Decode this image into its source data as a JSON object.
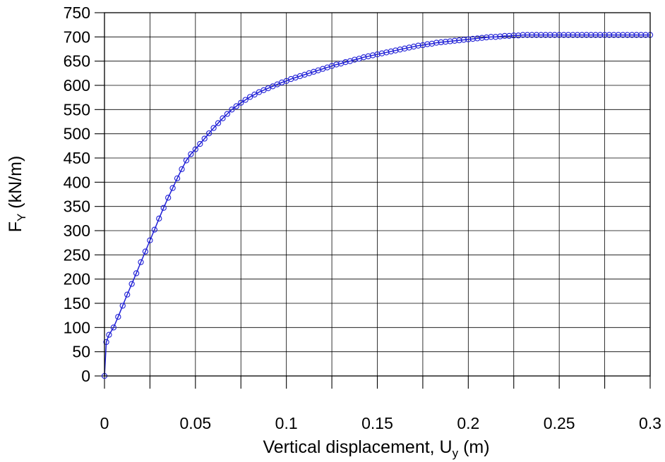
{
  "chart_data": {
    "type": "scatter",
    "title": "",
    "xlabel_main": "Vertical displacement, U",
    "xlabel_sub": "y",
    "xlabel_unit": " (m)",
    "ylabel_main": "F",
    "ylabel_sub": "Y",
    "ylabel_unit": " (kN/m)",
    "xlim": [
      0,
      0.3
    ],
    "ylim": [
      0,
      750
    ],
    "x_ticks": [
      0,
      0.05,
      0.1,
      0.15,
      0.2,
      0.25,
      0.3
    ],
    "x_tick_labels": [
      "0",
      "0.05",
      "0.1",
      "0.15",
      "0.2",
      "0.25",
      "0.3"
    ],
    "y_ticks": [
      0,
      50,
      100,
      150,
      200,
      250,
      300,
      350,
      400,
      450,
      500,
      550,
      600,
      650,
      700,
      750
    ],
    "y_tick_labels": [
      "0",
      "50",
      "100",
      "150",
      "200",
      "250",
      "300",
      "350",
      "400",
      "450",
      "500",
      "550",
      "600",
      "650",
      "700",
      "750"
    ],
    "grid": true,
    "marker": "open-circle",
    "line": true,
    "color": "#1f1fd6",
    "series": [
      {
        "x": [
          0,
          0.001,
          0.0025,
          0.005,
          0.0075,
          0.01,
          0.0125,
          0.015,
          0.0175,
          0.02,
          0.0225,
          0.025,
          0.0275,
          0.03,
          0.0325,
          0.035,
          0.0375,
          0.04,
          0.0425,
          0.045,
          0.0475,
          0.05,
          0.0525,
          0.055,
          0.0575,
          0.06,
          0.0625,
          0.065,
          0.0675,
          0.07,
          0.0725,
          0.075,
          0.0775,
          0.08,
          0.0825,
          0.085,
          0.0875,
          0.09,
          0.0925,
          0.095,
          0.0975,
          0.1,
          0.1025,
          0.105,
          0.1075,
          0.11,
          0.1125,
          0.115,
          0.1175,
          0.12,
          0.1225,
          0.125,
          0.1275,
          0.13,
          0.1325,
          0.135,
          0.1375,
          0.14,
          0.1425,
          0.145,
          0.1475,
          0.15,
          0.1525,
          0.155,
          0.1575,
          0.16,
          0.1625,
          0.165,
          0.1675,
          0.17,
          0.1725,
          0.175,
          0.1775,
          0.18,
          0.1825,
          0.185,
          0.1875,
          0.19,
          0.1925,
          0.195,
          0.1975,
          0.2,
          0.2025,
          0.205,
          0.2075,
          0.21,
          0.2125,
          0.215,
          0.2175,
          0.22,
          0.2225,
          0.225,
          0.2275,
          0.23,
          0.2325,
          0.235,
          0.2375,
          0.24,
          0.2425,
          0.245,
          0.2475,
          0.25,
          0.2525,
          0.255,
          0.2575,
          0.26,
          0.2625,
          0.265,
          0.2675,
          0.27,
          0.2725,
          0.275,
          0.2775,
          0.28,
          0.2825,
          0.285,
          0.2875,
          0.29,
          0.2925,
          0.295,
          0.2975,
          0.3
        ],
        "y": [
          0,
          70,
          85,
          100,
          122,
          145,
          168,
          190,
          212,
          235,
          257,
          280,
          302,
          325,
          347,
          368,
          388,
          408,
          427,
          445,
          458,
          468,
          479,
          490,
          501,
          512,
          522,
          532,
          541,
          550,
          557,
          564,
          570,
          576,
          581,
          586,
          590,
          594,
          598,
          602,
          606,
          609,
          613,
          616,
          619,
          622,
          625,
          628,
          631,
          634,
          637,
          640,
          643,
          645,
          648,
          650,
          653,
          655,
          658,
          660,
          662,
          664,
          666,
          668,
          670,
          672,
          674,
          676,
          678,
          680,
          682,
          683,
          685,
          686,
          688,
          689,
          690,
          691,
          692,
          693,
          694,
          695,
          696,
          697,
          698,
          699,
          700,
          700,
          701,
          702,
          702,
          703,
          703,
          704,
          704,
          704,
          704,
          704,
          704,
          704,
          704,
          704,
          704,
          704,
          704,
          704,
          704,
          704,
          704,
          704,
          704,
          704,
          704,
          704,
          704,
          704,
          704,
          704,
          704,
          704,
          704,
          704
        ]
      }
    ]
  }
}
